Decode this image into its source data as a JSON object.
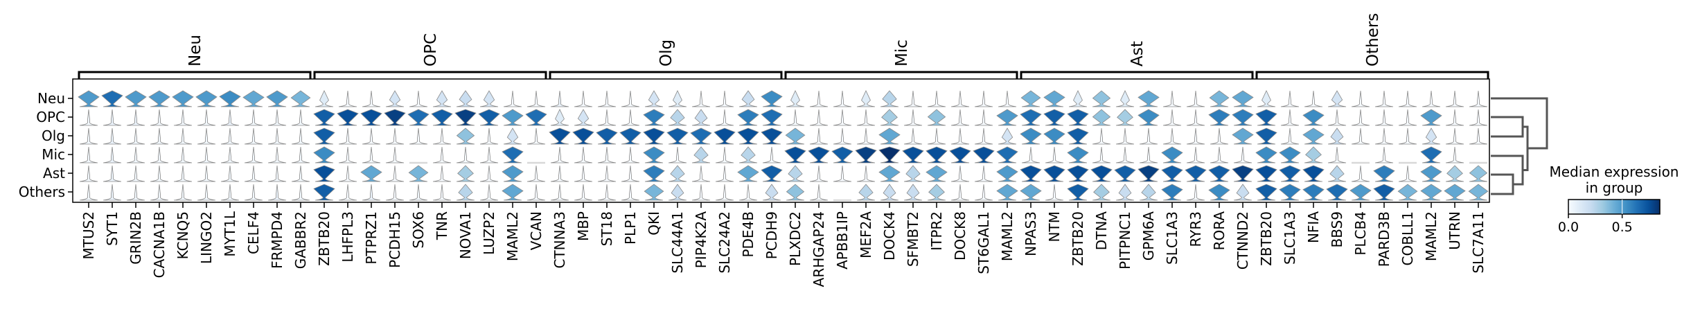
{
  "chart_data": {
    "type": "stacked-violin",
    "title": "",
    "row_labels": [
      "Neu",
      "OPC",
      "Olg",
      "Mic",
      "Ast",
      "Others"
    ],
    "colorbar": {
      "title_line1": "Median expression",
      "title_line2": "in group",
      "ticks": [
        "0.0",
        "0.5"
      ],
      "tick_values": [
        0.0,
        0.5
      ],
      "range": [
        0.0,
        0.85
      ],
      "colormap": "Blues"
    },
    "groups": [
      {
        "label": "Neu",
        "genes": [
          {
            "name": "MTUS2",
            "median": [
              0.5,
              0.02,
              0.02,
              0.02,
              0.02,
              0.02
            ]
          },
          {
            "name": "SYT1",
            "median": [
              0.65,
              0.05,
              0.05,
              0.05,
              0.05,
              0.05
            ]
          },
          {
            "name": "GRIN2B",
            "median": [
              0.5,
              0.05,
              0.02,
              0.02,
              0.02,
              0.02
            ]
          },
          {
            "name": "CACNA1B",
            "median": [
              0.5,
              0.02,
              0.02,
              0.02,
              0.02,
              0.02
            ]
          },
          {
            "name": "KCNQ5",
            "median": [
              0.5,
              0.02,
              0.02,
              0.02,
              0.02,
              0.02
            ]
          },
          {
            "name": "LINGO2",
            "median": [
              0.5,
              0.02,
              0.02,
              0.02,
              0.02,
              0.02
            ]
          },
          {
            "name": "MYT1L",
            "median": [
              0.55,
              0.05,
              0.02,
              0.02,
              0.02,
              0.02
            ]
          },
          {
            "name": "CELF4",
            "median": [
              0.45,
              0.02,
              0.02,
              0.02,
              0.02,
              0.02
            ]
          },
          {
            "name": "FRMPD4",
            "median": [
              0.5,
              0.02,
              0.02,
              0.02,
              0.02,
              0.05
            ]
          },
          {
            "name": "GABBR2",
            "median": [
              0.4,
              0.02,
              0.02,
              0.02,
              0.02,
              0.02
            ]
          }
        ]
      },
      {
        "label": "OPC",
        "genes": [
          {
            "name": "ZBTB20",
            "median": [
              0.1,
              0.7,
              0.7,
              0.55,
              0.75,
              0.7
            ]
          },
          {
            "name": "LHFPL3",
            "median": [
              0.0,
              0.75,
              0.0,
              0.0,
              0.0,
              0.0
            ]
          },
          {
            "name": "PTPRZ1",
            "median": [
              0.0,
              0.75,
              0.0,
              0.0,
              0.45,
              0.05
            ]
          },
          {
            "name": "PCDH15",
            "median": [
              0.15,
              0.8,
              0.0,
              0.0,
              0.0,
              0.0
            ]
          },
          {
            "name": "SOX6",
            "median": [
              0.0,
              0.65,
              0.0,
              null,
              0.4,
              0.02
            ]
          },
          {
            "name": "TNR",
            "median": [
              0.15,
              0.7,
              0.0,
              0.0,
              0.0,
              0.0
            ]
          },
          {
            "name": "NOVA1",
            "median": [
              0.2,
              0.8,
              0.35,
              0.0,
              0.3,
              0.25
            ]
          },
          {
            "name": "LUZP2",
            "median": [
              0.15,
              0.7,
              0.0,
              0.0,
              0.0,
              0.0
            ]
          },
          {
            "name": "MAML2",
            "median": [
              0.0,
              0.5,
              0.15,
              0.65,
              0.5,
              0.45
            ]
          },
          {
            "name": "VCAN",
            "median": [
              0.0,
              0.65,
              0.0,
              null,
              0.0,
              0.0
            ]
          }
        ]
      },
      {
        "label": "Olg",
        "genes": [
          {
            "name": "CTNNA3",
            "median": [
              0.05,
              0.1,
              0.75,
              0.0,
              0.0,
              0.0
            ]
          },
          {
            "name": "MBP",
            "median": [
              0.0,
              0.15,
              0.75,
              0.0,
              0.0,
              0.0
            ]
          },
          {
            "name": "ST18",
            "median": [
              0.0,
              0.0,
              0.7,
              0.0,
              0.0,
              0.0
            ]
          },
          {
            "name": "PLP1",
            "median": [
              0.0,
              0.0,
              0.7,
              0.0,
              0.0,
              0.0
            ]
          },
          {
            "name": "QKI",
            "median": [
              0.15,
              0.6,
              0.75,
              0.55,
              0.6,
              0.4
            ]
          },
          {
            "name": "SLC44A1",
            "median": [
              0.1,
              0.25,
              0.7,
              0.0,
              0.25,
              0.2
            ]
          },
          {
            "name": "PIP4K2A",
            "median": [
              0.0,
              0.2,
              0.65,
              0.25,
              0.0,
              0.0
            ]
          },
          {
            "name": "SLC24A2",
            "median": [
              0.0,
              0.0,
              0.75,
              0.0,
              0.0,
              0.0
            ]
          },
          {
            "name": "PDE4B",
            "median": [
              0.2,
              0.6,
              0.75,
              0.25,
              0.45,
              0.0
            ]
          },
          {
            "name": "PCDH9",
            "median": [
              0.55,
              0.65,
              0.75,
              0.0,
              0.7,
              0.2
            ]
          }
        ]
      },
      {
        "label": "Mic",
        "genes": [
          {
            "name": "PLXDC2",
            "median": [
              0.1,
              0.0,
              0.4,
              0.75,
              0.25,
              0.35
            ]
          },
          {
            "name": "ARHGAP24",
            "median": [
              0.0,
              0.0,
              0.0,
              0.75,
              0.0,
              0.0
            ]
          },
          {
            "name": "APBB1IP",
            "median": [
              0.0,
              0.0,
              0.0,
              0.7,
              0.0,
              null
            ]
          },
          {
            "name": "MEF2A",
            "median": [
              0.1,
              0.0,
              0.0,
              0.8,
              0.0,
              0.25
            ]
          },
          {
            "name": "DOCK4",
            "median": [
              0.25,
              0.3,
              0.45,
              0.85,
              0.45,
              0.2
            ]
          },
          {
            "name": "SFMBT2",
            "median": [
              0.0,
              0.0,
              0.0,
              0.75,
              0.25,
              0.2
            ]
          },
          {
            "name": "ITPR2",
            "median": [
              0.0,
              0.35,
              0.0,
              0.75,
              0.45,
              0.3
            ]
          },
          {
            "name": "DOCK8",
            "median": [
              0.0,
              0.0,
              0.0,
              0.75,
              0.0,
              0.0
            ]
          },
          {
            "name": "ST6GAL1",
            "median": [
              0.0,
              0.0,
              0.0,
              0.75,
              0.0,
              0.0
            ]
          },
          {
            "name": "MAML2",
            "median": [
              0.0,
              0.5,
              0.15,
              0.65,
              0.5,
              0.45
            ]
          }
        ]
      },
      {
        "label": "Ast",
        "genes": [
          {
            "name": "NPAS3",
            "median": [
              0.4,
              0.65,
              0.55,
              0.0,
              0.75,
              0.45
            ]
          },
          {
            "name": "NTM",
            "median": [
              0.45,
              0.7,
              0.55,
              0.0,
              0.75,
              0.0
            ]
          },
          {
            "name": "ZBTB20",
            "median": [
              0.1,
              0.7,
              0.7,
              0.55,
              0.75,
              0.7
            ]
          },
          {
            "name": "DTNA",
            "median": [
              0.35,
              0.35,
              0.0,
              0.0,
              0.75,
              0.3
            ]
          },
          {
            "name": "PITPNC1",
            "median": [
              0.1,
              0.3,
              0.0,
              0.0,
              0.7,
              0.2
            ]
          },
          {
            "name": "GPM6A",
            "median": [
              0.45,
              0.55,
              0.0,
              0.0,
              0.8,
              0.25
            ]
          },
          {
            "name": "SLC1A3",
            "median": [
              0.0,
              0.0,
              0.0,
              0.55,
              0.7,
              0.6
            ]
          },
          {
            "name": "RYR3",
            "median": [
              0.0,
              0.0,
              0.0,
              0.0,
              0.7,
              0.0
            ]
          },
          {
            "name": "RORA",
            "median": [
              0.4,
              0.6,
              0.0,
              0.0,
              0.7,
              0.55
            ]
          },
          {
            "name": "CTNND2",
            "median": [
              0.45,
              0.6,
              0.45,
              0.0,
              0.8,
              0.2
            ]
          }
        ]
      },
      {
        "label": "Others",
        "genes": [
          {
            "name": "ZBTB20",
            "median": [
              0.1,
              0.7,
              0.7,
              0.55,
              0.75,
              0.7
            ]
          },
          {
            "name": "SLC1A3",
            "median": [
              0.0,
              0.0,
              0.0,
              0.55,
              0.7,
              0.6
            ]
          },
          {
            "name": "NFIA",
            "median": [
              0.0,
              0.55,
              0.45,
              0.3,
              0.75,
              0.6
            ]
          },
          {
            "name": "BBS9",
            "median": [
              0.15,
              0.0,
              0.2,
              0.0,
              0.25,
              0.65
            ]
          },
          {
            "name": "PLCB4",
            "median": [
              0.0,
              0.0,
              0.0,
              null,
              0.0,
              0.5
            ]
          },
          {
            "name": "PARD3B",
            "median": [
              0.0,
              0.0,
              0.0,
              0.0,
              0.6,
              0.7
            ]
          },
          {
            "name": "COBLL1",
            "median": [
              0.0,
              0.0,
              0.0,
              null,
              0.0,
              0.4
            ]
          },
          {
            "name": "MAML2",
            "median": [
              0.0,
              0.5,
              0.15,
              0.65,
              0.5,
              0.45
            ]
          },
          {
            "name": "UTRN",
            "median": [
              0.0,
              0.0,
              0.0,
              0.0,
              0.3,
              0.45
            ]
          },
          {
            "name": "SLC7A11",
            "median": [
              0.0,
              0.0,
              0.0,
              null,
              0.35,
              0.4
            ]
          }
        ]
      }
    ],
    "dendrogram": "Neu vs ((OPC,Olg),(Mic,(Ast,Others)))"
  }
}
